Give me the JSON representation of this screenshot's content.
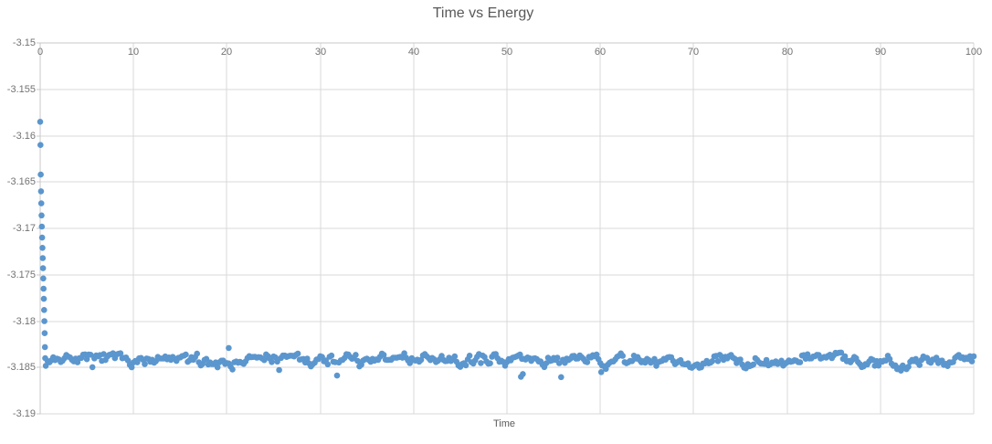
{
  "page": {
    "background": "#FFFFFF"
  },
  "chart_data": {
    "type": "scatter",
    "title": "Time vs Energy",
    "xlabel": "Time",
    "ylabel": "",
    "xlim": [
      0,
      100
    ],
    "ylim": [
      -3.19,
      -3.15
    ],
    "x_ticks": [
      0,
      10,
      20,
      30,
      40,
      50,
      60,
      70,
      80,
      90,
      100
    ],
    "y_ticks": [
      -3.15,
      -3.155,
      -3.16,
      -3.165,
      -3.17,
      -3.175,
      -3.18,
      -3.185,
      -3.19
    ],
    "y_tick_labels": [
      "-3.15",
      "-3.155",
      "-3.16",
      "-3.165",
      "-3.17",
      "-3.175",
      "-3.18",
      "-3.185",
      "-3.19"
    ],
    "grid": true,
    "legend": false,
    "x_tick_labels_position": "below-top-axis",
    "colors": {
      "marker": "#5B96CE",
      "gridline": "#D9D9D9",
      "axis_line": "#C9C9C9",
      "tick_label": "#737373",
      "title": "#595959"
    },
    "series": [
      {
        "name": "Energy",
        "marker": "circle",
        "transient_points": [
          [
            0.0,
            -3.1585
          ],
          [
            0.03,
            -3.161
          ],
          [
            0.06,
            -3.1642
          ],
          [
            0.09,
            -3.166
          ],
          [
            0.12,
            -3.1673
          ],
          [
            0.15,
            -3.1686
          ],
          [
            0.18,
            -3.1698
          ],
          [
            0.21,
            -3.171
          ],
          [
            0.24,
            -3.1721
          ],
          [
            0.27,
            -3.1732
          ],
          [
            0.3,
            -3.1743
          ],
          [
            0.33,
            -3.1754
          ],
          [
            0.36,
            -3.1765
          ],
          [
            0.39,
            -3.1776
          ],
          [
            0.42,
            -3.1788
          ],
          [
            0.45,
            -3.18
          ],
          [
            0.48,
            -3.1813
          ],
          [
            0.51,
            -3.1828
          ],
          [
            0.54,
            -3.184
          ]
        ],
        "steady_state": {
          "t_start": 0.6,
          "t_end": 100,
          "dt": 0.2,
          "mean": -3.1842,
          "noise_amplitude": 0.0009,
          "min": -3.1861,
          "max": -3.1826
        },
        "notable_points": [
          [
            20.2,
            -3.1829
          ],
          [
            51.5,
            -3.186
          ],
          [
            51.7,
            -3.1857
          ],
          [
            60.1,
            -3.1855
          ]
        ]
      }
    ]
  }
}
